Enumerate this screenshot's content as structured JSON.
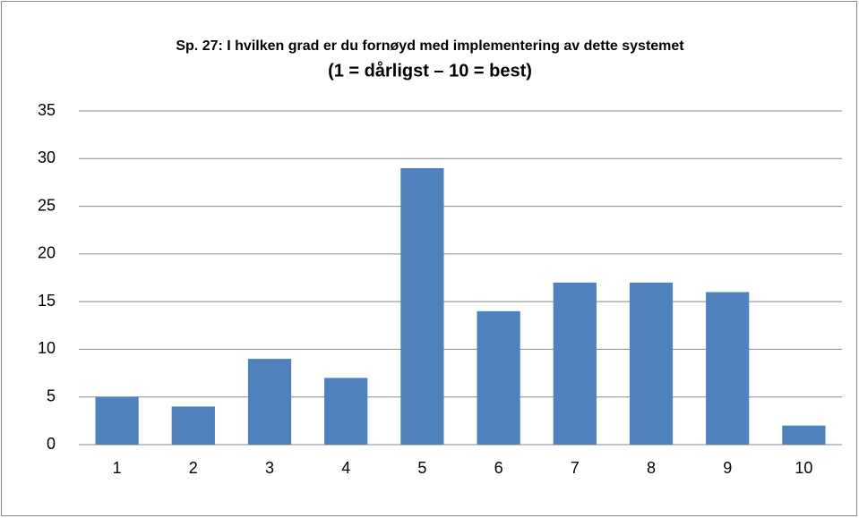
{
  "chart_data": {
    "type": "bar",
    "title": "Sp. 27: I hvilken grad er du fornøyd med implementering av dette systemet",
    "subtitle": "(1 = dårligst – 10 = best)",
    "categories": [
      "1",
      "2",
      "3",
      "4",
      "5",
      "6",
      "7",
      "8",
      "9",
      "10"
    ],
    "values": [
      5,
      4,
      9,
      7,
      29,
      14,
      17,
      17,
      16,
      2
    ],
    "color": "#4f81bd",
    "ylim": [
      0,
      35
    ],
    "yticks": [
      0,
      5,
      10,
      15,
      20,
      25,
      30,
      35
    ],
    "grid": true
  }
}
